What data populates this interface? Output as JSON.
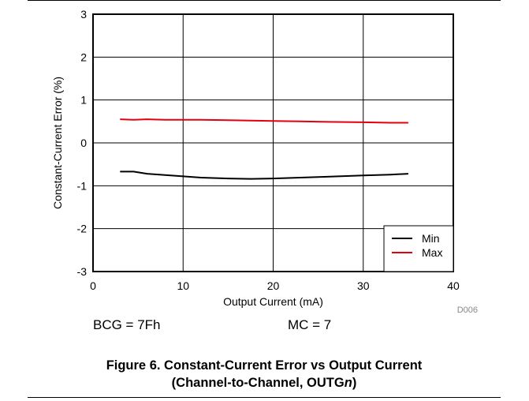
{
  "chart_data": {
    "type": "line",
    "chart_id": "D006",
    "xlabel": "Output Current (mA)",
    "ylabel": "Constant-Current Error (%)",
    "xlim": [
      0,
      40
    ],
    "ylim": [
      -3,
      3
    ],
    "x_ticks": [
      "0",
      "10",
      "20",
      "30",
      "40"
    ],
    "y_ticks": [
      "-3",
      "-2",
      "-1",
      "0",
      "1",
      "2",
      "3"
    ],
    "grid": true,
    "legend_position": "bottom-right",
    "series": [
      {
        "name": "Min",
        "color": "#000000",
        "x": [
          3,
          4.5,
          6,
          8,
          10,
          12,
          15,
          17.5,
          20,
          23,
          26,
          30,
          33,
          35
        ],
        "y": [
          -0.67,
          -0.67,
          -0.72,
          -0.75,
          -0.78,
          -0.81,
          -0.83,
          -0.84,
          -0.83,
          -0.81,
          -0.79,
          -0.76,
          -0.74,
          -0.72
        ]
      },
      {
        "name": "Max",
        "color": "#e3000f",
        "x": [
          3,
          4.5,
          6,
          8,
          10,
          12,
          15,
          17.5,
          20,
          23,
          26,
          30,
          33,
          35
        ],
        "y": [
          0.55,
          0.54,
          0.55,
          0.54,
          0.54,
          0.54,
          0.53,
          0.52,
          0.51,
          0.5,
          0.49,
          0.48,
          0.47,
          0.47
        ]
      }
    ]
  },
  "conditions": {
    "bcg": "BCG = 7Fh",
    "mc": "MC = 7"
  },
  "caption": {
    "line1": "Figure 6. Constant-Current Error vs Output Current",
    "line2_prefix": "(Channel-to-Channel, OUTG",
    "line2_italic": "n",
    "line2_suffix": ")"
  }
}
